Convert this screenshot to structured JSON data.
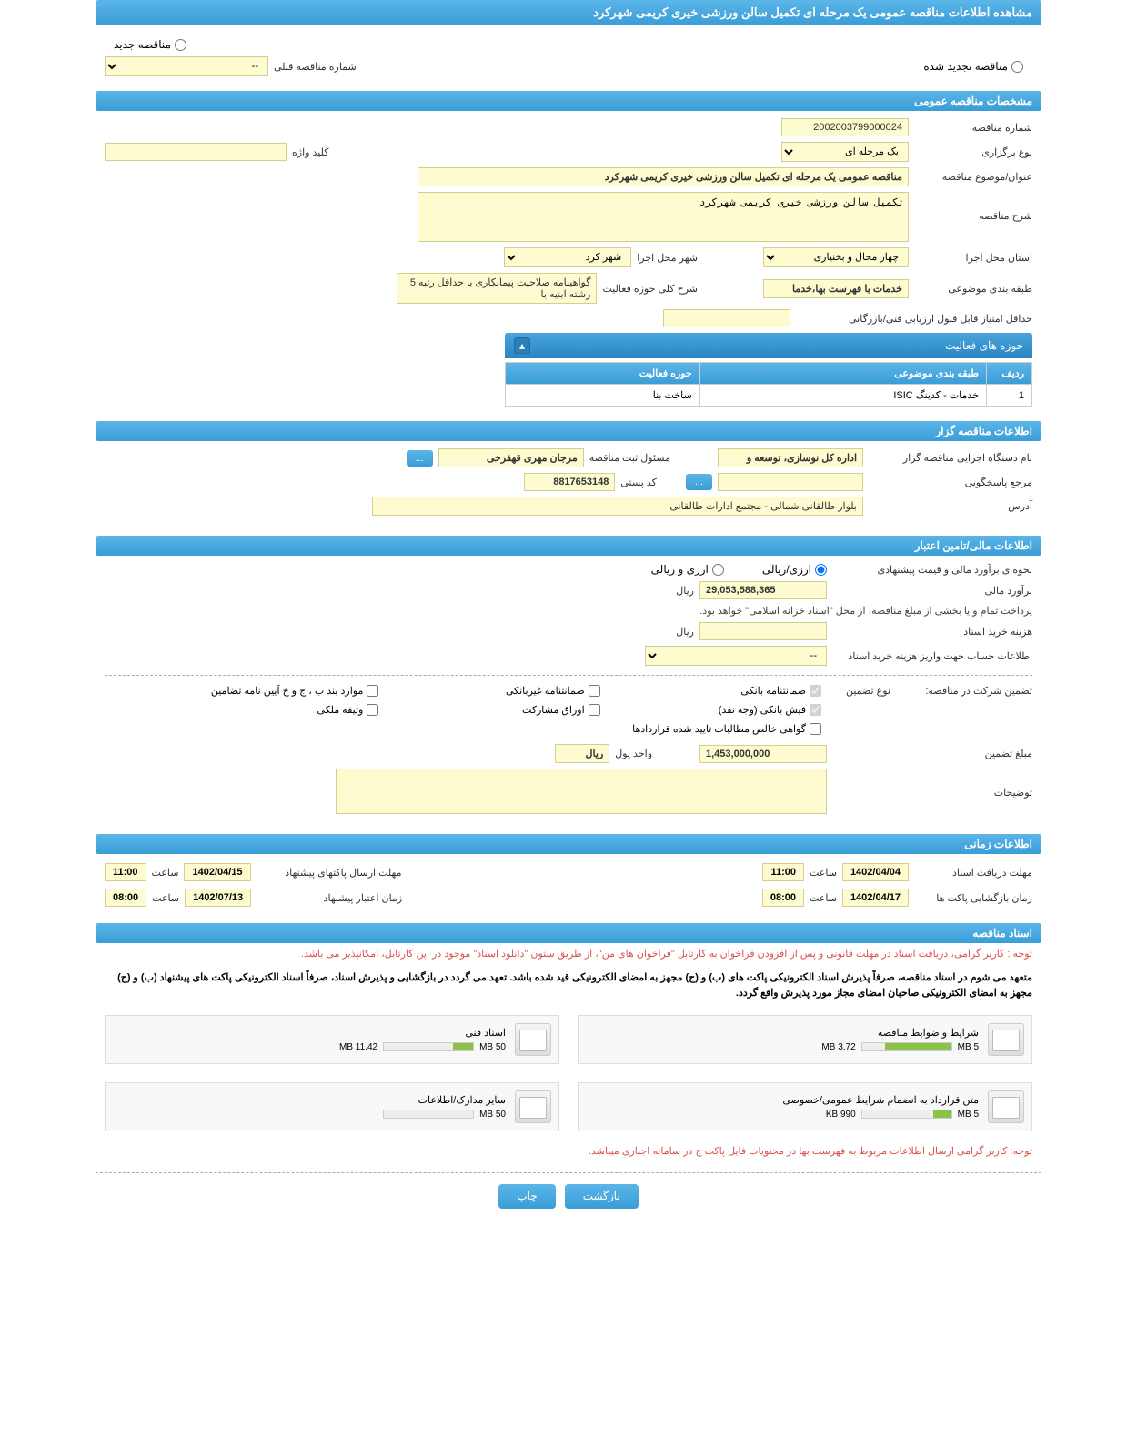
{
  "page_title": "مشاهده اطلاعات مناقصه عمومی یک مرحله ای تکمیل سالن ورزشی خیری کریمی شهرکرد",
  "tender_type": {
    "new": "مناقصه جدید",
    "renewed": "مناقصه تجدید شده",
    "prev_number_label": "شماره مناقصه قبلی",
    "prev_number_value": "--"
  },
  "sections": {
    "general": "مشخصات مناقصه عمومی",
    "organizer": "اطلاعات مناقصه گزار",
    "financial": "اطلاعات مالی/تامین اعتبار",
    "timing": "اطلاعات زمانی",
    "documents": "اسناد مناقصه"
  },
  "general": {
    "tender_number_label": "شماره مناقصه",
    "tender_number": "2002003799000024",
    "holding_type_label": "نوع برگزاری",
    "holding_type": "یک مرحله ای",
    "keyword_label": "کلید واژه",
    "keyword": "",
    "title_label": "عنوان/موضوع مناقصه",
    "title": "مناقصه عمومی یک مرحله ای تکمیل سالن ورزشی خیری کریمی شهرکرد",
    "desc_label": "شرح مناقصه",
    "desc": "تکمیل سالن ورزشی خیری کریمی شهرکرد",
    "province_label": "استان محل اجرا",
    "province": "چهار محال و بختیاری",
    "city_label": "شهر محل اجرا",
    "city": "شهر کرد",
    "category_label": "طبقه بندی موضوعی",
    "category": "خدمات با فهرست بها،خدما",
    "activity_desc_label": "شرح کلی حوزه فعالیت",
    "activity_desc": "گواهینامه صلاحیت پیمانکاری با حداقل رتبه 5 رشته ابنیه با",
    "min_score_label": "حداقل امتیاز قابل قبول ارزیابی فنی/بازرگانی",
    "min_score": "",
    "activities_header": "حوزه های فعالیت",
    "table": {
      "col_row": "ردیف",
      "col_category": "طبقه بندی موضوعی",
      "col_activity": "حوزه فعالیت",
      "rows": [
        {
          "n": "1",
          "cat": "خدمات - کدینگ ISIC",
          "act": "ساخت بنا"
        }
      ]
    }
  },
  "organizer": {
    "exec_label": "نام دستگاه اجرایی مناقصه گزار",
    "exec": "اداره کل نوسازی، توسعه و",
    "resp_label": "مسئول ثبت مناقصه",
    "resp": "مرجان مهری قهفرخی",
    "contact_label": "مرجع پاسخگویی",
    "contact": "",
    "postal_label": "کد پستی",
    "postal": "8817653148",
    "address_label": "آدرس",
    "address": "بلوار طالقانی شمالی  -  مجتمع ادارات طالقانی",
    "more_btn": "..."
  },
  "financial": {
    "method_label": "نحوه ی برآورد مالی و قیمت پیشنهادی",
    "opt_rial": "ارزی/ریالی",
    "opt_both": "ارزی و ریالی",
    "estimate_label": "برآورد مالی",
    "estimate": "29,053,588,365",
    "currency": "ریال",
    "treasury_note": "پرداخت تمام و یا بخشی از مبلغ مناقصه، از محل \"اسناد خزانه اسلامی\" خواهد بود.",
    "doc_cost_label": "هزینه خرید اسناد",
    "doc_cost": "",
    "account_label": "اطلاعات حساب جهت واریز هزینه خرید اسناد",
    "account": "--",
    "guarantee_label": "تضمین شرکت در مناقصه:",
    "guarantee_type_label": "نوع تضمین",
    "checkboxes": {
      "bank_guarantee": "ضمانتنامه بانکی",
      "nonbank_guarantee": "ضمانتنامه غیربانکی",
      "bylaw_items": "موارد بند ب ، ج و خ آیین نامه تضامین",
      "bank_receipt": "فیش بانکی (وجه نقد)",
      "participation_bonds": "اوراق مشارکت",
      "property_deed": "وثیقه ملکی",
      "contract_claims": "گواهی خالص مطالبات تایید شده قراردادها"
    },
    "guarantee_amount_label": "مبلغ تضمین",
    "guarantee_amount": "1,453,000,000",
    "unit_label": "واحد پول",
    "unit": "ریال",
    "notes_label": "توضیحات",
    "notes": ""
  },
  "timing": {
    "receive_deadline_label": "مهلت دریافت اسناد",
    "receive_date": "1402/04/04",
    "receive_time_label": "ساعت",
    "receive_time": "11:00",
    "send_deadline_label": "مهلت ارسال پاکتهای پیشنهاد",
    "send_date": "1402/04/15",
    "send_time": "11:00",
    "open_label": "زمان بازگشایی پاکت ها",
    "open_date": "1402/04/17",
    "open_time": "08:00",
    "validity_label": "زمان اعتبار پیشنهاد",
    "validity_date": "1402/07/13",
    "validity_time": "08:00"
  },
  "documents": {
    "notice1": "توجه : کاربر گرامی، دریافت اسناد در مهلت قانونی و پس از افزودن فراخوان به کارتابل \"فراخوان های من\"، از طریق ستون \"دانلود اسناد\" موجود در این کارتابل، امکانپذیر می باشد.",
    "notice2": "متعهد می شوم در اسناد مناقصه، صرفاً پذیرش اسناد الکترونیکی پاکت های (ب) و (ج) مجهز به امضای الکترونیکی قید شده باشد. تعهد می گردد در بازگشایی و پذیرش اسناد، صرفاً اسناد الکترونیکی پاکت های پیشنهاد (ب) و (ج) مجهز به امضای الکترونیکی صاحبان امضای مجاز مورد پذیرش واقع گردد.",
    "notice3": "توجه: کاربر گرامی ارسال اطلاعات مربوط به فهرست بها در محتویات فایل پاکت ج در سامانه اجباری میباشد.",
    "files": [
      {
        "title": "شرایط و ضوابط مناقصه",
        "size": "3.72 MB",
        "max": "5 MB",
        "pct": 74
      },
      {
        "title": "اسناد فنی",
        "size": "11.42 MB",
        "max": "50 MB",
        "pct": 23
      },
      {
        "title": "متن قرارداد به انضمام شرایط عمومی/خصوصی",
        "size": "990 KB",
        "max": "5 MB",
        "pct": 20
      },
      {
        "title": "سایر مدارک/اطلاعات",
        "size": "",
        "max": "50 MB",
        "pct": 0
      }
    ]
  },
  "buttons": {
    "print": "چاپ",
    "back": "بازگشت"
  }
}
